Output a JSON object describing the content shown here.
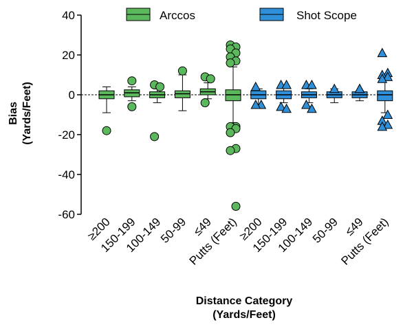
{
  "colors": {
    "arccos": "#5cb85c",
    "shot_scope": "#2f8fd8",
    "stroke": "#000000"
  },
  "legend": {
    "position": "top",
    "items": [
      "Arccos",
      "Shot Scope"
    ]
  },
  "chart_data": {
    "type": "box",
    "ylabel_lines": [
      "Bias",
      "(Yards/Feet)"
    ],
    "xlabel_lines": [
      "Distance Category",
      "(Yards/Feet)"
    ],
    "ylim": [
      -60,
      40
    ],
    "yticks": [
      40,
      20,
      0,
      -20,
      -40,
      -60
    ],
    "reference_line": 0,
    "categories": [
      "≥200",
      "150-199",
      "100-149",
      "50-99",
      "≤49",
      "Putts (Feet)",
      "≥200",
      "150-199",
      "100-149",
      "50-99",
      "≤49",
      "Putts (Feet)"
    ],
    "series": [
      {
        "name": "Arccos",
        "marker": "circle",
        "boxes": [
          {
            "whisker_low": -9,
            "q1": -2,
            "median": 0,
            "q3": 2,
            "whisker_high": 4,
            "outliers": [
              -18
            ]
          },
          {
            "whisker_low": -3,
            "q1": -1,
            "median": 1,
            "q3": 2.5,
            "whisker_high": 4,
            "outliers": [
              7,
              -6
            ]
          },
          {
            "whisker_low": -4,
            "q1": -1.5,
            "median": 0,
            "q3": 1.5,
            "whisker_high": 3,
            "outliers": [
              5,
              4,
              -21
            ]
          },
          {
            "whisker_low": -8,
            "q1": -1.5,
            "median": 0.5,
            "q3": 2,
            "whisker_high": 10,
            "outliers": [
              12
            ]
          },
          {
            "whisker_low": -2,
            "q1": 0,
            "median": 1.5,
            "q3": 3,
            "whisker_high": 6,
            "outliers": [
              9,
              8,
              -4
            ]
          },
          {
            "whisker_low": -14,
            "q1": -3,
            "median": 0,
            "q3": 2.5,
            "whisker_high": 14,
            "outliers": [
              25,
              24,
              23,
              21,
              19,
              17,
              16,
              -16,
              -16,
              -17,
              -19,
              -27,
              -28,
              -56
            ]
          }
        ]
      },
      {
        "name": "Shot Scope",
        "marker": "triangle",
        "boxes": [
          {
            "whisker_low": -5,
            "q1": -2,
            "median": 0,
            "q3": 2,
            "whisker_high": 3,
            "outliers": [
              4,
              -5,
              -5
            ]
          },
          {
            "whisker_low": -4,
            "q1": -2,
            "median": 0,
            "q3": 2,
            "whisker_high": 4,
            "outliers": [
              5,
              5,
              -6,
              -7
            ]
          },
          {
            "whisker_low": -4,
            "q1": -1.5,
            "median": 0,
            "q3": 1.5,
            "whisker_high": 3,
            "outliers": [
              5,
              5,
              -5,
              -7
            ]
          },
          {
            "whisker_low": -4,
            "q1": -1.5,
            "median": 0,
            "q3": 1.5,
            "whisker_high": 3,
            "outliers": [
              3
            ]
          },
          {
            "whisker_low": -3,
            "q1": -1.5,
            "median": 0,
            "q3": 1.5,
            "whisker_high": 2,
            "outliers": [
              3,
              3
            ]
          },
          {
            "whisker_low": -9,
            "q1": -3,
            "median": 0,
            "q3": 2,
            "whisker_high": 8,
            "outliers": [
              21,
              11,
              10,
              9,
              8,
              -10,
              -13,
              -15,
              -16
            ]
          }
        ]
      }
    ]
  }
}
